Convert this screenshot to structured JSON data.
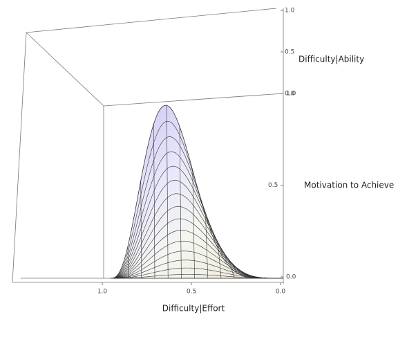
{
  "chart_data": {
    "type": "surface",
    "x_label": "Difficulty|Effort",
    "y_label": "Difficulty|Ability",
    "z_label": "Motivation to Achieve",
    "xlim": [
      1,
      0
    ],
    "xticks": [
      {
        "value": 1,
        "label": "1.0"
      },
      {
        "value": 0.5,
        "label": "0.5"
      },
      {
        "value": 0,
        "label": "0.0"
      }
    ],
    "ylim": [
      0,
      1
    ],
    "yticks": [
      {
        "value": 0,
        "label": "0.0"
      },
      {
        "value": 0.5,
        "label": "0.5"
      },
      {
        "value": 1,
        "label": "1.0"
      }
    ],
    "zlim": [
      0,
      1
    ],
    "zticks": [
      {
        "value": 0,
        "label": "0.0"
      },
      {
        "value": 0.5,
        "label": "0.5"
      },
      {
        "value": 1,
        "label": "1.0"
      }
    ]
  }
}
